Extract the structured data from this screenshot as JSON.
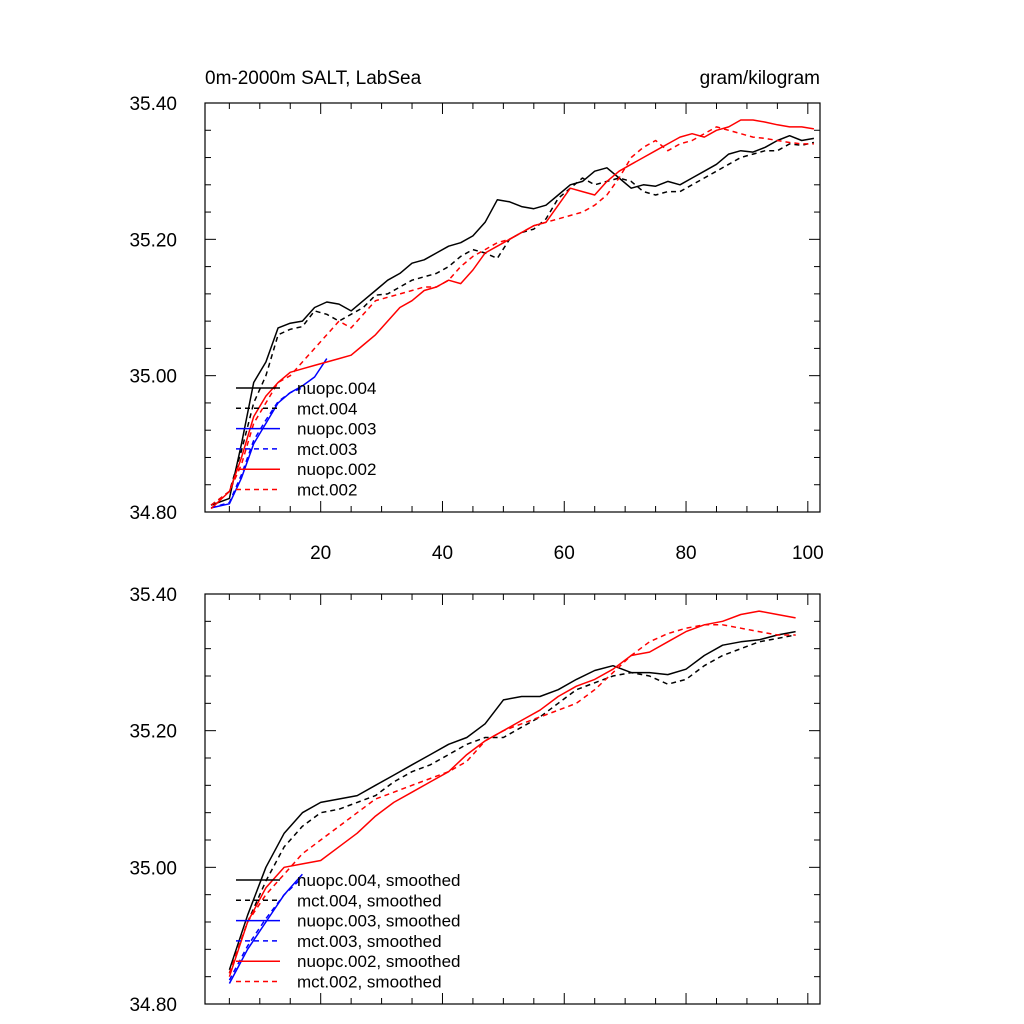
{
  "chart_data": [
    {
      "type": "line",
      "title": "0m-2000m SALT, LabSea",
      "units": "gram/kilogram",
      "xlim": [
        1,
        102
      ],
      "ylim": [
        34.8,
        35.4
      ],
      "xticks": [
        20,
        40,
        60,
        80,
        100
      ],
      "xtick_labels": [
        "20",
        "40",
        "60",
        "80",
        "100"
      ],
      "yticks": [
        34.8,
        35.0,
        35.2,
        35.4
      ],
      "ytick_labels": [
        "34.80",
        "35.00",
        "35.20",
        "35.40"
      ],
      "legend_position": "bottom-left",
      "series": [
        {
          "name": "nuopc.004",
          "color": "#000000",
          "dash": "solid",
          "x": [
            2,
            5,
            7,
            9,
            11,
            13,
            15,
            17,
            19,
            21,
            23,
            25,
            27,
            29,
            31,
            33,
            35,
            37,
            39,
            41,
            43,
            45,
            47,
            49,
            51,
            53,
            55,
            57,
            59,
            61,
            63,
            65,
            67,
            69,
            71,
            73,
            75,
            77,
            79,
            81,
            83,
            85,
            87,
            89,
            91,
            93,
            95,
            97,
            99,
            101
          ],
          "y": [
            34.81,
            34.82,
            34.9,
            34.99,
            35.02,
            35.07,
            35.077,
            35.08,
            35.1,
            35.108,
            35.105,
            35.095,
            35.11,
            35.125,
            35.14,
            35.15,
            35.165,
            35.17,
            35.18,
            35.19,
            35.195,
            35.205,
            35.225,
            35.258,
            35.255,
            35.248,
            35.245,
            35.25,
            35.265,
            35.28,
            35.285,
            35.3,
            35.305,
            35.29,
            35.275,
            35.28,
            35.278,
            35.285,
            35.28,
            35.29,
            35.3,
            35.31,
            35.325,
            35.33,
            35.328,
            35.335,
            35.345,
            35.352,
            35.345,
            35.348
          ]
        },
        {
          "name": "mct.004",
          "color": "#000000",
          "dash": "dashed",
          "x": [
            2,
            5,
            7,
            9,
            11,
            13,
            15,
            17,
            19,
            21,
            23,
            25,
            27,
            29,
            31,
            33,
            35,
            37,
            39,
            41,
            43,
            45,
            47,
            49,
            51,
            53,
            55,
            57,
            59,
            61,
            63,
            65,
            67,
            69,
            71,
            73,
            75,
            77,
            79,
            81,
            83,
            85,
            87,
            89,
            91,
            93,
            95,
            97,
            99,
            101
          ],
          "y": [
            34.81,
            34.83,
            34.89,
            34.96,
            35.0,
            35.06,
            35.068,
            35.072,
            35.095,
            35.09,
            35.08,
            35.09,
            35.1,
            35.118,
            35.12,
            35.13,
            35.14,
            35.145,
            35.15,
            35.16,
            35.175,
            35.185,
            35.18,
            35.172,
            35.2,
            35.21,
            35.215,
            35.23,
            35.26,
            35.275,
            35.29,
            35.28,
            35.285,
            35.29,
            35.285,
            35.27,
            35.265,
            35.27,
            35.27,
            35.28,
            35.29,
            35.3,
            35.31,
            35.32,
            35.325,
            35.33,
            35.33,
            35.34,
            35.338,
            35.342
          ]
        },
        {
          "name": "nuopc.003",
          "color": "#0000ff",
          "dash": "solid",
          "x": [
            2,
            5,
            7,
            9,
            11,
            13,
            15,
            17,
            19,
            21
          ],
          "y": [
            34.806,
            34.812,
            34.85,
            34.9,
            34.93,
            34.96,
            34.975,
            34.985,
            34.998,
            35.025
          ]
        },
        {
          "name": "mct.003",
          "color": "#0000ff",
          "dash": "dashed",
          "x": [
            2,
            5,
            7,
            9,
            11,
            13,
            15,
            17
          ],
          "y": [
            34.806,
            34.814,
            34.855,
            34.905,
            34.935,
            34.962,
            34.975,
            34.982
          ]
        },
        {
          "name": "nuopc.002",
          "color": "#ff0000",
          "dash": "solid",
          "x": [
            2,
            5,
            7,
            9,
            11,
            13,
            15,
            17,
            19,
            21,
            23,
            25,
            27,
            29,
            31,
            33,
            35,
            37,
            39,
            41,
            43,
            45,
            47,
            49,
            51,
            53,
            55,
            57,
            59,
            61,
            63,
            65,
            67,
            69,
            71,
            73,
            75,
            77,
            79,
            81,
            83,
            85,
            87,
            89,
            91,
            93,
            95,
            97,
            99,
            101
          ],
          "y": [
            34.805,
            34.83,
            34.88,
            34.94,
            34.97,
            34.99,
            35.005,
            35.01,
            35.015,
            35.02,
            35.025,
            35.03,
            35.045,
            35.06,
            35.08,
            35.1,
            35.11,
            35.125,
            35.13,
            35.14,
            35.135,
            35.155,
            35.18,
            35.19,
            35.2,
            35.21,
            35.22,
            35.225,
            35.25,
            35.275,
            35.27,
            35.265,
            35.285,
            35.3,
            35.31,
            35.32,
            35.33,
            35.34,
            35.35,
            35.355,
            35.35,
            35.36,
            35.365,
            35.375,
            35.375,
            35.372,
            35.368,
            35.365,
            35.365,
            35.362
          ]
        },
        {
          "name": "mct.002",
          "color": "#ff0000",
          "dash": "dashed",
          "x": [
            2,
            5,
            7,
            9,
            11,
            13,
            15,
            17,
            19,
            21,
            23,
            25,
            27,
            29,
            31,
            33,
            35,
            37,
            39,
            41,
            43,
            45,
            47,
            49,
            51,
            53,
            55,
            57,
            59,
            61,
            63,
            65,
            67,
            69,
            71,
            73,
            75,
            77,
            79,
            81,
            83,
            85,
            87,
            89,
            91,
            93,
            95,
            97,
            99,
            101
          ],
          "y": [
            34.81,
            34.83,
            34.87,
            34.93,
            34.96,
            34.99,
            35.0,
            35.02,
            35.04,
            35.06,
            35.08,
            35.07,
            35.09,
            35.11,
            35.115,
            35.12,
            35.125,
            35.13,
            35.13,
            35.14,
            35.16,
            35.175,
            35.185,
            35.195,
            35.2,
            35.21,
            35.22,
            35.225,
            35.23,
            35.235,
            35.24,
            35.25,
            35.265,
            35.29,
            35.32,
            35.335,
            35.345,
            35.33,
            35.34,
            35.345,
            35.355,
            35.365,
            35.36,
            35.355,
            35.35,
            35.348,
            35.345,
            35.342,
            35.34,
            35.34
          ]
        }
      ]
    },
    {
      "type": "line",
      "title": "",
      "xlim": [
        1,
        102
      ],
      "ylim": [
        34.8,
        35.4
      ],
      "xticks": [
        20,
        40,
        60,
        80,
        100
      ],
      "yticks": [
        34.8,
        35.0,
        35.2,
        35.4
      ],
      "ytick_labels": [
        "34.80",
        "35.00",
        "35.20",
        "35.40"
      ],
      "legend_position": "bottom-left",
      "series": [
        {
          "name": "nuopc.004, smoothed",
          "color": "#000000",
          "dash": "solid",
          "x": [
            5,
            8,
            11,
            14,
            17,
            20,
            23,
            26,
            29,
            32,
            35,
            38,
            41,
            44,
            47,
            50,
            53,
            56,
            59,
            62,
            65,
            68,
            71,
            74,
            77,
            80,
            83,
            86,
            89,
            92,
            95,
            98
          ],
          "y": [
            34.85,
            34.93,
            35.0,
            35.05,
            35.08,
            35.095,
            35.1,
            35.105,
            35.12,
            35.135,
            35.15,
            35.165,
            35.18,
            35.19,
            35.21,
            35.245,
            35.25,
            35.25,
            35.26,
            35.275,
            35.288,
            35.295,
            35.285,
            35.285,
            35.282,
            35.29,
            35.31,
            35.325,
            35.33,
            35.333,
            35.34,
            35.345
          ]
        },
        {
          "name": "mct.004, smoothed",
          "color": "#000000",
          "dash": "dashed",
          "x": [
            5,
            8,
            11,
            14,
            17,
            20,
            23,
            26,
            29,
            32,
            35,
            38,
            41,
            44,
            47,
            50,
            53,
            56,
            59,
            62,
            65,
            68,
            71,
            74,
            77,
            80,
            83,
            86,
            89,
            92,
            95,
            98
          ],
          "y": [
            34.845,
            34.92,
            34.98,
            35.03,
            35.06,
            35.08,
            35.085,
            35.095,
            35.105,
            35.125,
            35.14,
            35.15,
            35.165,
            35.18,
            35.19,
            35.19,
            35.205,
            35.22,
            35.24,
            35.26,
            35.27,
            35.28,
            35.285,
            35.28,
            35.268,
            35.275,
            35.295,
            35.31,
            35.32,
            35.33,
            35.335,
            35.34
          ]
        },
        {
          "name": "nuopc.003, smoothed",
          "color": "#0000ff",
          "dash": "solid",
          "x": [
            5,
            8,
            11,
            14,
            17
          ],
          "y": [
            34.83,
            34.88,
            34.92,
            34.96,
            34.99
          ]
        },
        {
          "name": "mct.003, smoothed",
          "color": "#0000ff",
          "dash": "dashed",
          "x": [
            5,
            8,
            11,
            14,
            17
          ],
          "y": [
            34.835,
            34.885,
            34.925,
            34.96,
            34.985
          ]
        },
        {
          "name": "nuopc.002, smoothed",
          "color": "#ff0000",
          "dash": "solid",
          "x": [
            5,
            8,
            11,
            14,
            17,
            20,
            23,
            26,
            29,
            32,
            35,
            38,
            41,
            44,
            47,
            50,
            53,
            56,
            59,
            62,
            65,
            68,
            71,
            74,
            77,
            80,
            83,
            86,
            89,
            92,
            95,
            98
          ],
          "y": [
            34.84,
            34.92,
            34.97,
            35.0,
            35.005,
            35.01,
            35.03,
            35.05,
            35.075,
            35.095,
            35.11,
            35.125,
            35.14,
            35.165,
            35.185,
            35.2,
            35.215,
            35.23,
            35.25,
            35.265,
            35.275,
            35.29,
            35.31,
            35.315,
            35.33,
            35.345,
            35.355,
            35.36,
            35.37,
            35.375,
            35.37,
            35.365
          ]
        },
        {
          "name": "mct.002, smoothed",
          "color": "#ff0000",
          "dash": "dashed",
          "x": [
            5,
            8,
            11,
            14,
            17,
            20,
            23,
            26,
            29,
            32,
            35,
            38,
            41,
            44,
            47,
            50,
            53,
            56,
            59,
            62,
            65,
            68,
            71,
            74,
            77,
            80,
            83,
            86,
            89,
            92,
            95,
            98
          ],
          "y": [
            34.845,
            34.92,
            34.96,
            34.99,
            35.02,
            35.04,
            35.06,
            35.08,
            35.1,
            35.11,
            35.12,
            35.13,
            35.14,
            35.155,
            35.185,
            35.2,
            35.21,
            35.22,
            35.23,
            35.24,
            35.26,
            35.285,
            35.31,
            35.33,
            35.342,
            35.35,
            35.355,
            35.355,
            35.35,
            35.345,
            35.34,
            35.34
          ]
        }
      ]
    }
  ]
}
